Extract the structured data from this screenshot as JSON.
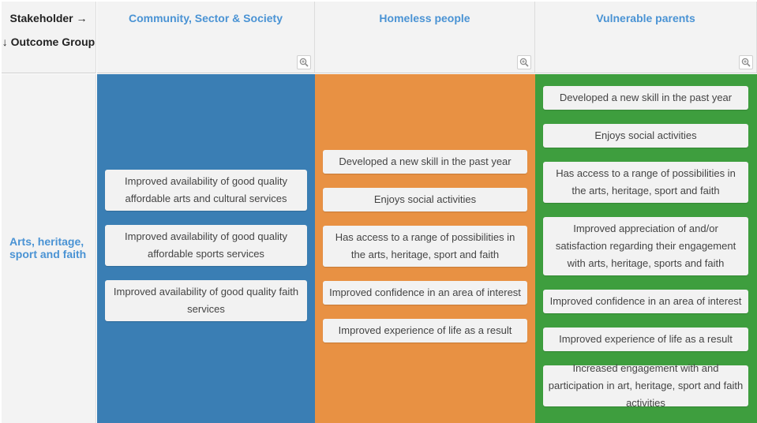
{
  "corner": {
    "stakeholder_label": "Stakeholder →",
    "outcome_label": "↓ Outcome Group"
  },
  "columns": [
    {
      "title": "Community, Sector & Society",
      "color": "#3a7eb4",
      "zoom_icon": "zoom-in-icon"
    },
    {
      "title": "Homeless people",
      "color": "#e89143",
      "zoom_icon": "zoom-in-icon"
    },
    {
      "title": "Vulnerable parents",
      "color": "#3e9e3e",
      "zoom_icon": "zoom-in-icon"
    }
  ],
  "row": {
    "label": "Arts, heritage, sport and faith"
  },
  "outcomes": {
    "community": [
      "Improved availability of good quality affordable arts and cultural services",
      "Improved availability of good quality affordable sports services",
      "Improved availability of good quality faith services"
    ],
    "homeless": [
      "Developed a new skill in the past year",
      "Enjoys social activities",
      "Has access to a range of possibilities in the arts, heritage, sport and faith",
      "Improved confidence in an area of interest",
      "Improved experience of life as a result"
    ],
    "parents": [
      "Developed a new skill in the past year",
      "Enjoys social activities",
      "Has access to a range of possibilities in the arts, heritage, sport and faith",
      "Improved appreciation of and/or satisfaction regarding their engagement with arts, heritage, sports and faith",
      "Improved confidence in an area of interest",
      "Improved experience of life as a result",
      "Increased engagement with and participation in art, heritage, sport and faith activities"
    ]
  }
}
